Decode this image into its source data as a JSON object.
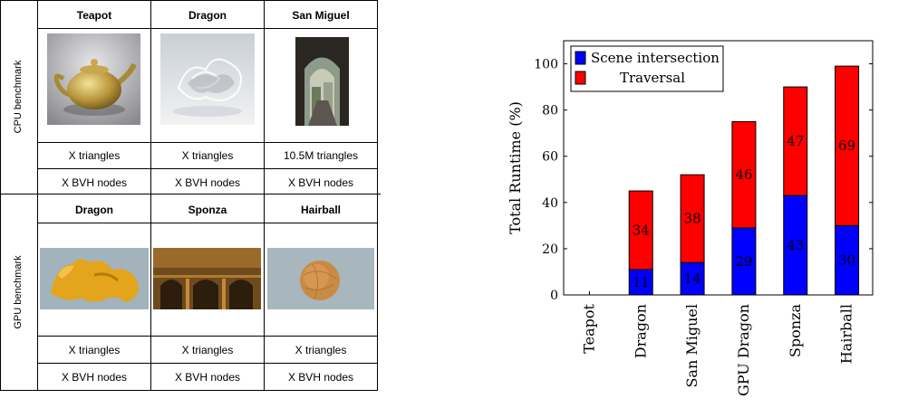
{
  "table": {
    "cpu_label": "CPU benchmark",
    "gpu_label": "GPU benchmark",
    "cpu_rows": {
      "headers": [
        "Teapot",
        "Dragon",
        "San Miguel"
      ],
      "triangles": [
        "X triangles",
        "X triangles",
        "10.5M triangles"
      ],
      "nodes": [
        "X BVH nodes",
        "X BVH nodes",
        "X BVH nodes"
      ]
    },
    "gpu_rows": {
      "headers": [
        "Dragon",
        "Sponza",
        "Hairball"
      ],
      "triangles": [
        "X triangles",
        "X triangles",
        "X triangles"
      ],
      "nodes": [
        "X BVH nodes",
        "X BVH nodes",
        "X BVH nodes"
      ]
    },
    "images": [
      "teapot render",
      "glass dragon render",
      "san miguel render",
      "golden dragon render",
      "sponza render",
      "hairball render"
    ]
  },
  "chart_data": {
    "type": "bar",
    "stacked": true,
    "categories": [
      "Teapot",
      "Dragon",
      "San Miguel",
      "GPU Dragon",
      "Sponza",
      "Hairball"
    ],
    "series": [
      {
        "name": "Scene intersection",
        "color": "#0000ff",
        "values": [
          0,
          11,
          14,
          29,
          43,
          30
        ]
      },
      {
        "name": "Traversal",
        "color": "#ff0000",
        "values": [
          0,
          34,
          38,
          46,
          47,
          69
        ]
      }
    ],
    "ylabel": "Total Runtime (%)",
    "xlabel": "",
    "ylim": [
      0,
      110
    ],
    "yticks": [
      0,
      20,
      40,
      60,
      80,
      100
    ],
    "legend_position": "top-left",
    "grid": false
  }
}
